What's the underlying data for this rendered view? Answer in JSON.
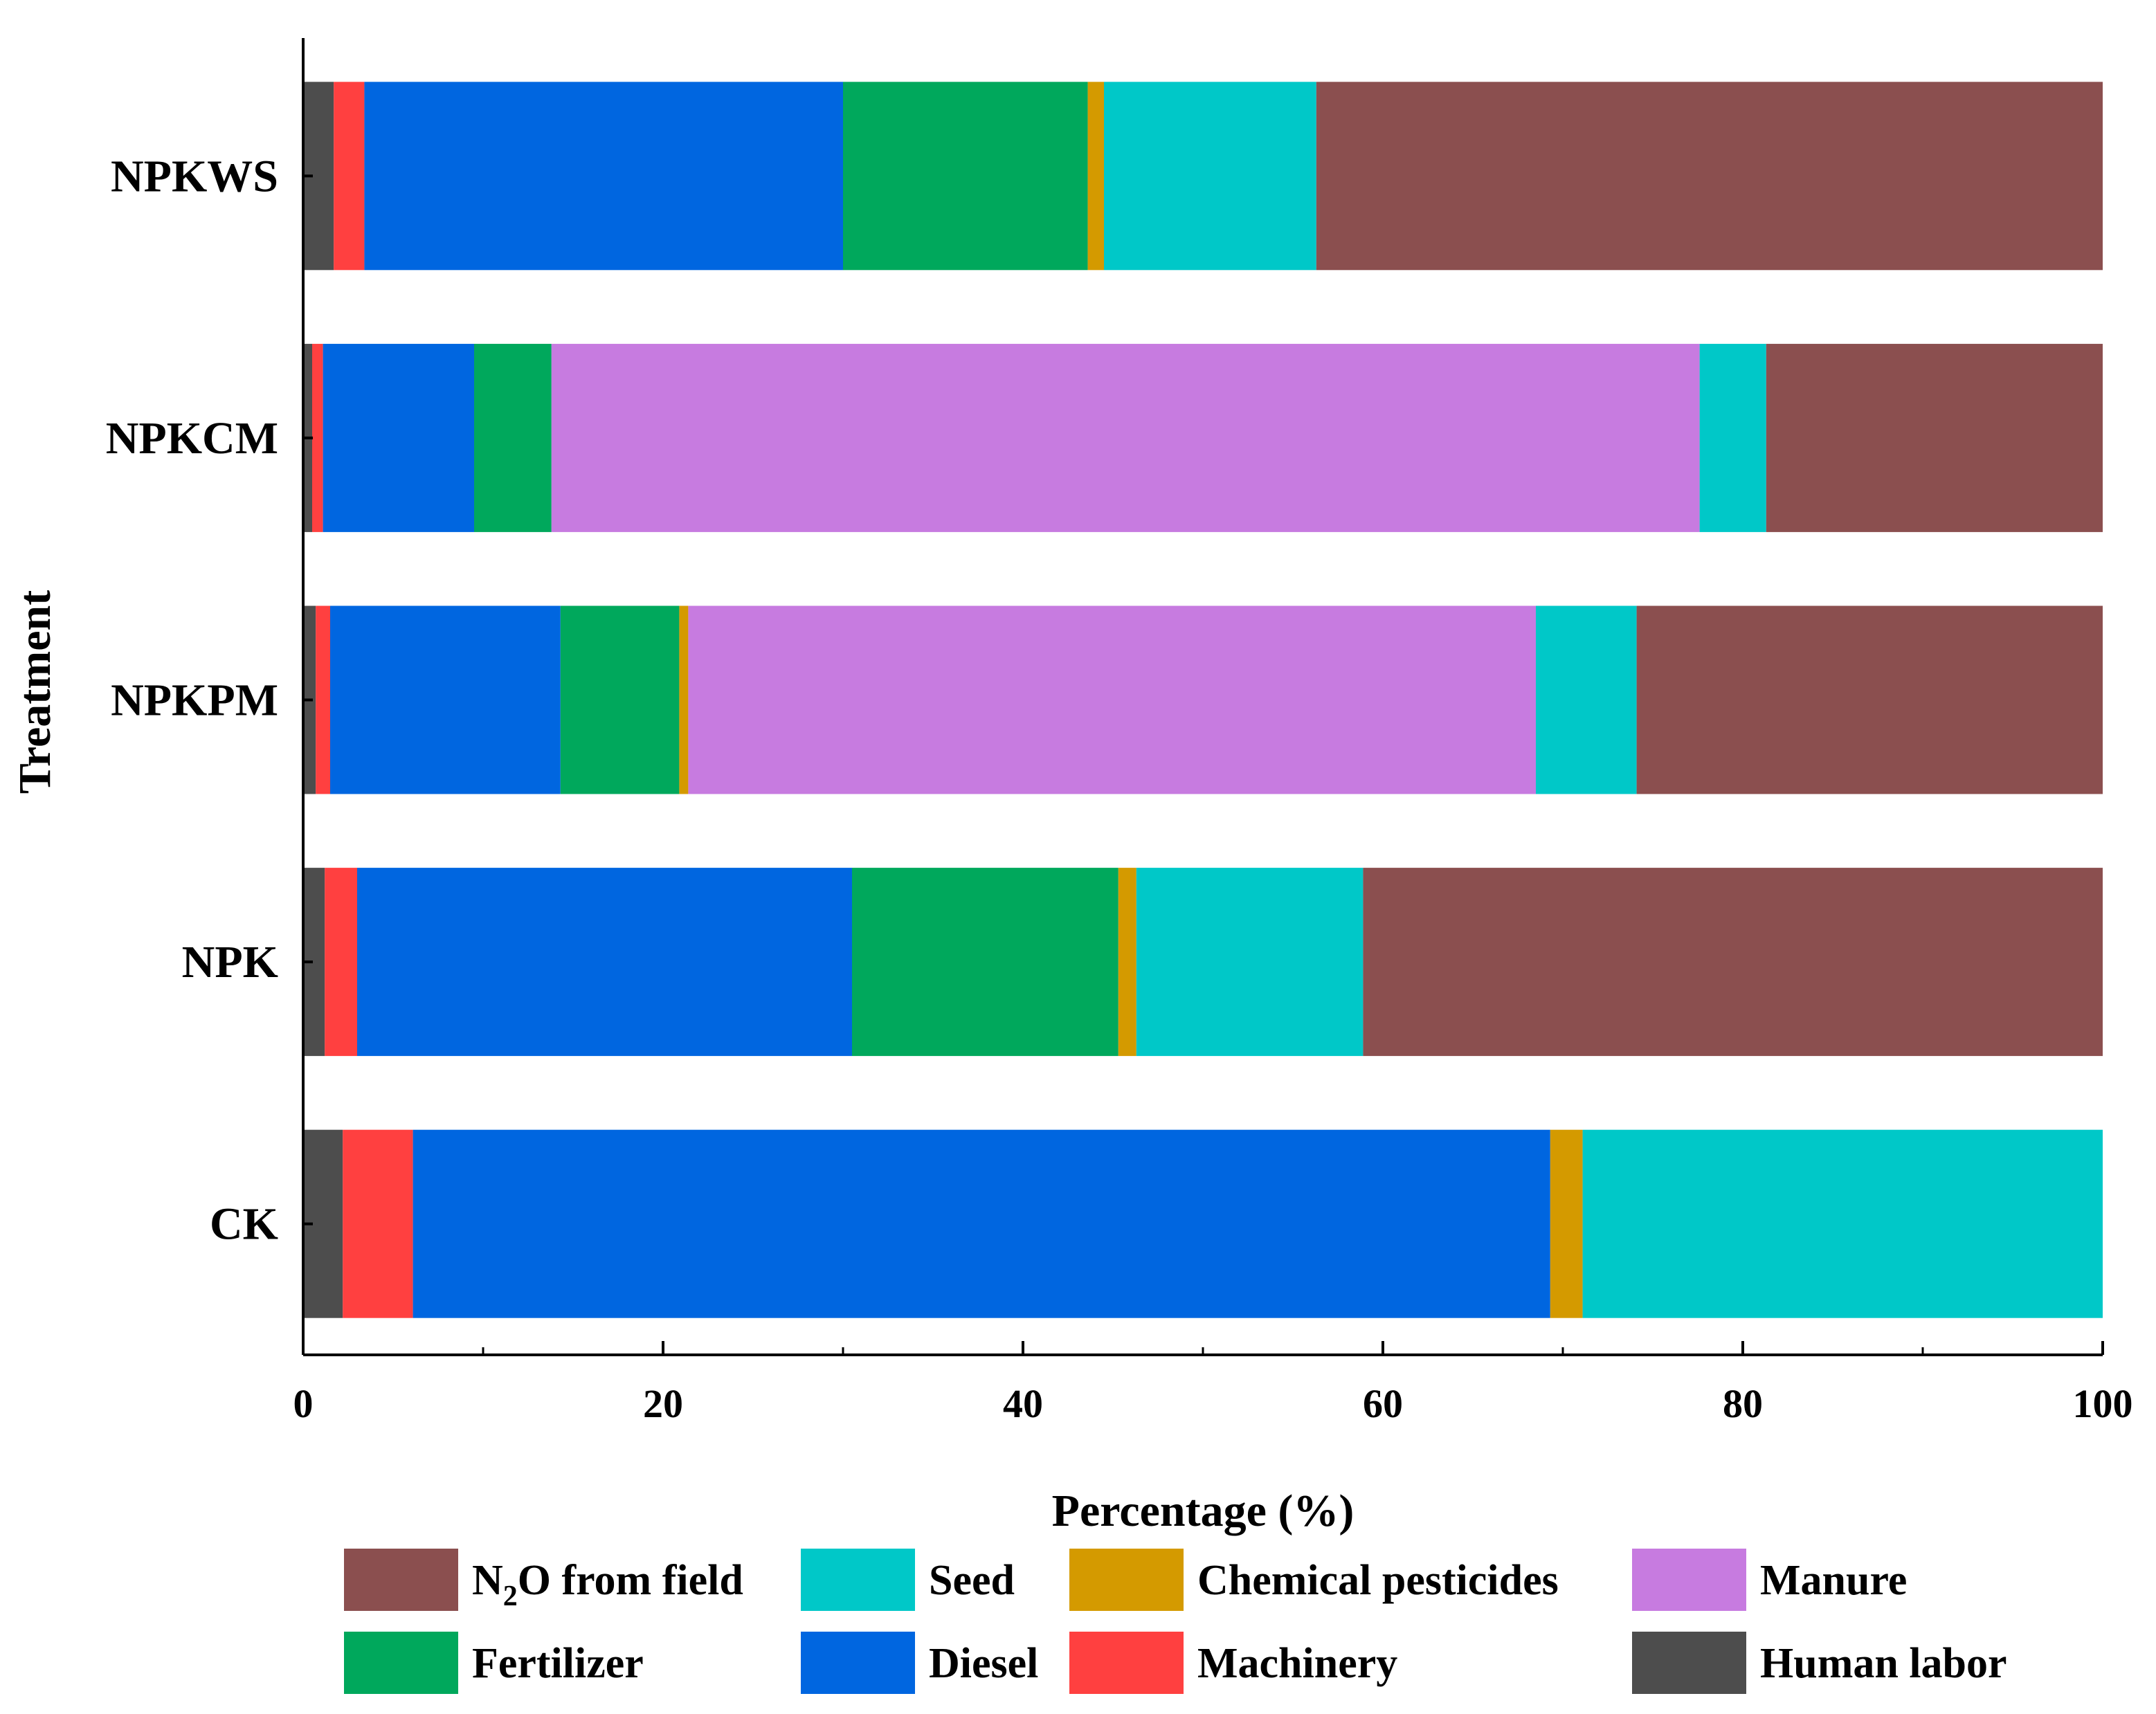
{
  "chart_data": {
    "type": "bar",
    "orientation": "horizontal",
    "stacked": true,
    "title": "",
    "xlabel": "Percentage (%)",
    "ylabel": "Treatment",
    "xlim": [
      0,
      100
    ],
    "xticks": [
      "0",
      "20",
      "40",
      "60",
      "80",
      "100"
    ],
    "categories": [
      "NPKWS",
      "NPKCM",
      "NPKPM",
      "NPK",
      "CK"
    ],
    "series": [
      {
        "name": "Human labor",
        "color": "#4d4d4d",
        "values": [
          1.7,
          0.5,
          0.7,
          1.2,
          2.2
        ]
      },
      {
        "name": "Machinery",
        "color": "#ff4040",
        "values": [
          1.7,
          0.6,
          0.8,
          1.8,
          3.9
        ]
      },
      {
        "name": "Diesel",
        "color": "#0066e0",
        "values": [
          26.6,
          8.4,
          12.8,
          27.5,
          63.2
        ]
      },
      {
        "name": "Fertilizer",
        "color": "#00a85c",
        "values": [
          13.6,
          4.3,
          6.6,
          14.8,
          0
        ]
      },
      {
        "name": "Chemical pesticides",
        "color": "#d49a00",
        "values": [
          0.9,
          0,
          0.5,
          1.0,
          1.8
        ]
      },
      {
        "name": "Manure",
        "color": "#c77be0",
        "values": [
          0,
          63.8,
          47.1,
          0,
          0
        ]
      },
      {
        "name": "Seed",
        "color": "#00c8c8",
        "values": [
          11.8,
          3.7,
          5.6,
          12.6,
          28.9
        ]
      },
      {
        "name": "N2O from field",
        "color": "#8b4f4f",
        "values": [
          43.7,
          18.7,
          25.9,
          41.1,
          0
        ]
      }
    ],
    "legend": {
      "placement": "bottom",
      "items": [
        {
          "name": "N2O from field",
          "label_main": "N",
          "label_sub": "2",
          "label_rest": "O from field"
        },
        {
          "name": "Seed",
          "label": "Seed"
        },
        {
          "name": "Chemical pesticides",
          "label": "Chemical pesticides"
        },
        {
          "name": "Manure",
          "label": "Manure"
        },
        {
          "name": "Fertilizer",
          "label": "Fertilizer"
        },
        {
          "name": "Diesel",
          "label": "Diesel"
        },
        {
          "name": "Machinery",
          "label": "Machinery"
        },
        {
          "name": "Human labor",
          "label": "Human labor"
        }
      ]
    }
  }
}
